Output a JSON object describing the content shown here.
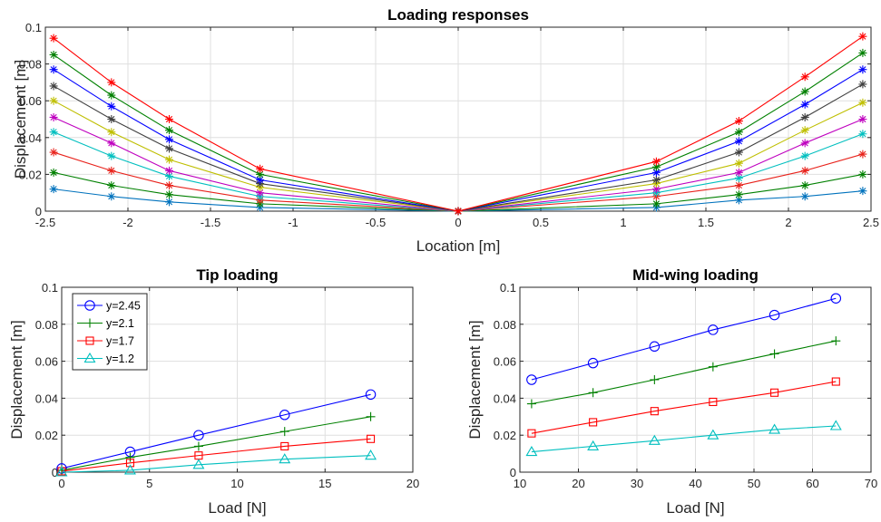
{
  "chart_data": [
    {
      "type": "line",
      "title": "Loading responses",
      "xlabel": "Location [m]",
      "ylabel": "Displacement [m]",
      "xlim": [
        -2.5,
        2.5
      ],
      "ylim": [
        0,
        0.1
      ],
      "xticks": [
        "-2.5",
        "-2",
        "-1.5",
        "-1",
        "-0.5",
        "0",
        "0.5",
        "1",
        "1.5",
        "2",
        "2.5"
      ],
      "yticks": [
        "0",
        "0.02",
        "0.04",
        "0.06",
        "0.08",
        "0.1"
      ],
      "grid": true,
      "marker": "asterisk",
      "x": [
        -2.45,
        -2.1,
        -1.75,
        -1.2,
        0,
        1.2,
        1.7,
        2.1,
        2.45
      ],
      "series": [
        {
          "color": "#0072BD",
          "values": [
            0.012,
            0.008,
            0.005,
            0.002,
            0,
            0.002,
            0.006,
            0.008,
            0.011
          ]
        },
        {
          "color": "#008000",
          "values": [
            0.021,
            0.014,
            0.009,
            0.004,
            0,
            0.004,
            0.009,
            0.014,
            0.02
          ]
        },
        {
          "color": "#E8221B",
          "values": [
            0.032,
            0.022,
            0.014,
            0.006,
            0,
            0.008,
            0.014,
            0.022,
            0.031
          ]
        },
        {
          "color": "#00BFBF",
          "values": [
            0.043,
            0.03,
            0.019,
            0.008,
            0,
            0.01,
            0.018,
            0.03,
            0.042
          ]
        },
        {
          "color": "#BF00BF",
          "values": [
            0.051,
            0.037,
            0.022,
            0.01,
            0,
            0.012,
            0.021,
            0.037,
            0.05
          ]
        },
        {
          "color": "#BFBF00",
          "values": [
            0.06,
            0.043,
            0.028,
            0.013,
            0,
            0.015,
            0.026,
            0.044,
            0.059
          ]
        },
        {
          "color": "#404040",
          "values": [
            0.068,
            0.05,
            0.034,
            0.015,
            0,
            0.017,
            0.032,
            0.051,
            0.069
          ]
        },
        {
          "color": "#0000FF",
          "values": [
            0.077,
            0.057,
            0.039,
            0.017,
            0,
            0.021,
            0.038,
            0.058,
            0.077
          ]
        },
        {
          "color": "#008000",
          "values": [
            0.085,
            0.063,
            0.044,
            0.02,
            0,
            0.024,
            0.043,
            0.065,
            0.086
          ]
        },
        {
          "color": "#FF0000",
          "values": [
            0.094,
            0.07,
            0.05,
            0.023,
            0,
            0.027,
            0.049,
            0.073,
            0.095
          ]
        }
      ]
    },
    {
      "type": "line",
      "title": "Tip loading",
      "xlabel": "Load [N]",
      "ylabel": "Displacement [m]",
      "xlim": [
        0,
        20
      ],
      "ylim": [
        0,
        0.1
      ],
      "xticks": [
        "0",
        "5",
        "10",
        "15",
        "20"
      ],
      "yticks": [
        "0",
        "0.02",
        "0.04",
        "0.06",
        "0.08",
        "0.1"
      ],
      "grid": true,
      "legend": "top-left",
      "x": [
        0,
        3.9,
        7.8,
        12.7,
        17.6
      ],
      "series": [
        {
          "name": "y=2.45",
          "color": "#0000FF",
          "marker": "circle",
          "values": [
            0.002,
            0.011,
            0.02,
            0.031,
            0.042
          ]
        },
        {
          "name": "y=2.1",
          "color": "#008000",
          "marker": "plus",
          "values": [
            0.001,
            0.008,
            0.014,
            0.022,
            0.03
          ]
        },
        {
          "name": "y=1.7",
          "color": "#FF0000",
          "marker": "square",
          "values": [
            0.0005,
            0.005,
            0.009,
            0.014,
            0.018
          ]
        },
        {
          "name": "y=1.2",
          "color": "#00BFBF",
          "marker": "triangle",
          "values": [
            0,
            0.001,
            0.004,
            0.007,
            0.009
          ]
        }
      ]
    },
    {
      "type": "line",
      "title": "Mid-wing loading",
      "xlabel": "Load [N]",
      "ylabel": "Displacement [m]",
      "xlim": [
        10,
        70
      ],
      "ylim": [
        0,
        0.1
      ],
      "xticks": [
        "10",
        "20",
        "30",
        "40",
        "50",
        "60",
        "70"
      ],
      "yticks": [
        "0",
        "0.02",
        "0.04",
        "0.06",
        "0.08",
        "0.1"
      ],
      "grid": true,
      "x": [
        12,
        22.5,
        33,
        43,
        53.5,
        64
      ],
      "series": [
        {
          "color": "#0000FF",
          "marker": "circle",
          "values": [
            0.05,
            0.059,
            0.068,
            0.077,
            0.085,
            0.094
          ]
        },
        {
          "color": "#008000",
          "marker": "plus",
          "values": [
            0.037,
            0.043,
            0.05,
            0.057,
            0.064,
            0.071
          ]
        },
        {
          "color": "#FF0000",
          "marker": "square",
          "values": [
            0.021,
            0.027,
            0.033,
            0.038,
            0.043,
            0.049
          ]
        },
        {
          "color": "#00BFBF",
          "marker": "triangle",
          "values": [
            0.011,
            0.014,
            0.017,
            0.02,
            0.023,
            0.025
          ]
        }
      ]
    }
  ]
}
